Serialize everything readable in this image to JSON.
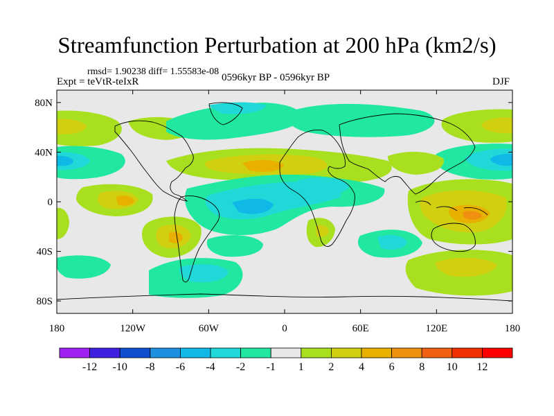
{
  "chart_data": {
    "type": "heatmap",
    "title": "Streamfunction Perturbation at 200 hPa (km2/s)",
    "subtitle_left_top": "rmsd= 1.90238 diff= 1.55583e-08",
    "subtitle_left": "Expt = teVtR-teIxR",
    "subtitle_center": "0596kyr BP - 0596kyr BP",
    "subtitle_right": "DJF",
    "projection": "cylindrical equidistant",
    "xlim": [
      -180,
      180
    ],
    "ylim": [
      -90,
      90
    ],
    "x_ticks": [
      {
        "value": -180,
        "label": "180"
      },
      {
        "value": -120,
        "label": "120W"
      },
      {
        "value": -60,
        "label": "60W"
      },
      {
        "value": 0,
        "label": "0"
      },
      {
        "value": 60,
        "label": "60E"
      },
      {
        "value": 120,
        "label": "120E"
      },
      {
        "value": 180,
        "label": "180"
      }
    ],
    "y_ticks": [
      {
        "value": 80,
        "label": "80N"
      },
      {
        "value": 40,
        "label": "40N"
      },
      {
        "value": 0,
        "label": "0"
      },
      {
        "value": -40,
        "label": "40S"
      },
      {
        "value": -80,
        "label": "80S"
      }
    ],
    "colorbar": {
      "labels": [
        "-12",
        "-10",
        "-8",
        "-6",
        "-4",
        "-2",
        "-1",
        "1",
        "2",
        "4",
        "6",
        "8",
        "10",
        "12"
      ],
      "colors": [
        "#a020f0",
        "#4020e0",
        "#1050d0",
        "#1e90e0",
        "#10b8e8",
        "#20d8d8",
        "#20e8a0",
        "#e8e8e8",
        "#a8e020",
        "#d0d010",
        "#e8b000",
        "#f09010",
        "#f06010",
        "#f03000",
        "#ff0000"
      ]
    },
    "features": [
      {
        "lon": -160,
        "lat": 50,
        "value": 2
      },
      {
        "lon": 160,
        "lat": 50,
        "value": 2
      },
      {
        "lon": -95,
        "lat": 57,
        "value": 2
      },
      {
        "lon": -155,
        "lat": 35,
        "value": -2
      },
      {
        "lon": 155,
        "lat": 35,
        "value": -2
      },
      {
        "lon": 5,
        "lat": 78,
        "value": -2
      },
      {
        "lon": 10,
        "lat": 58,
        "value": -1
      },
      {
        "lon": -10,
        "lat": 38,
        "value": 4
      },
      {
        "lon": 105,
        "lat": 43,
        "value": 2
      },
      {
        "lon": 20,
        "lat": 18,
        "value": -2
      },
      {
        "lon": -35,
        "lat": 2,
        "value": -2
      },
      {
        "lon": 110,
        "lat": 0,
        "value": 4
      },
      {
        "lon": 155,
        "lat": -10,
        "value": 4
      },
      {
        "lon": -120,
        "lat": 0,
        "value": 4
      },
      {
        "lon": -170,
        "lat": -15,
        "value": 2
      },
      {
        "lon": -85,
        "lat": -28,
        "value": 4
      },
      {
        "lon": 40,
        "lat": -20,
        "value": 2
      },
      {
        "lon": 80,
        "lat": -33,
        "value": -2
      },
      {
        "lon": 125,
        "lat": -55,
        "value": 2
      },
      {
        "lon": -65,
        "lat": -62,
        "value": -2
      }
    ]
  }
}
